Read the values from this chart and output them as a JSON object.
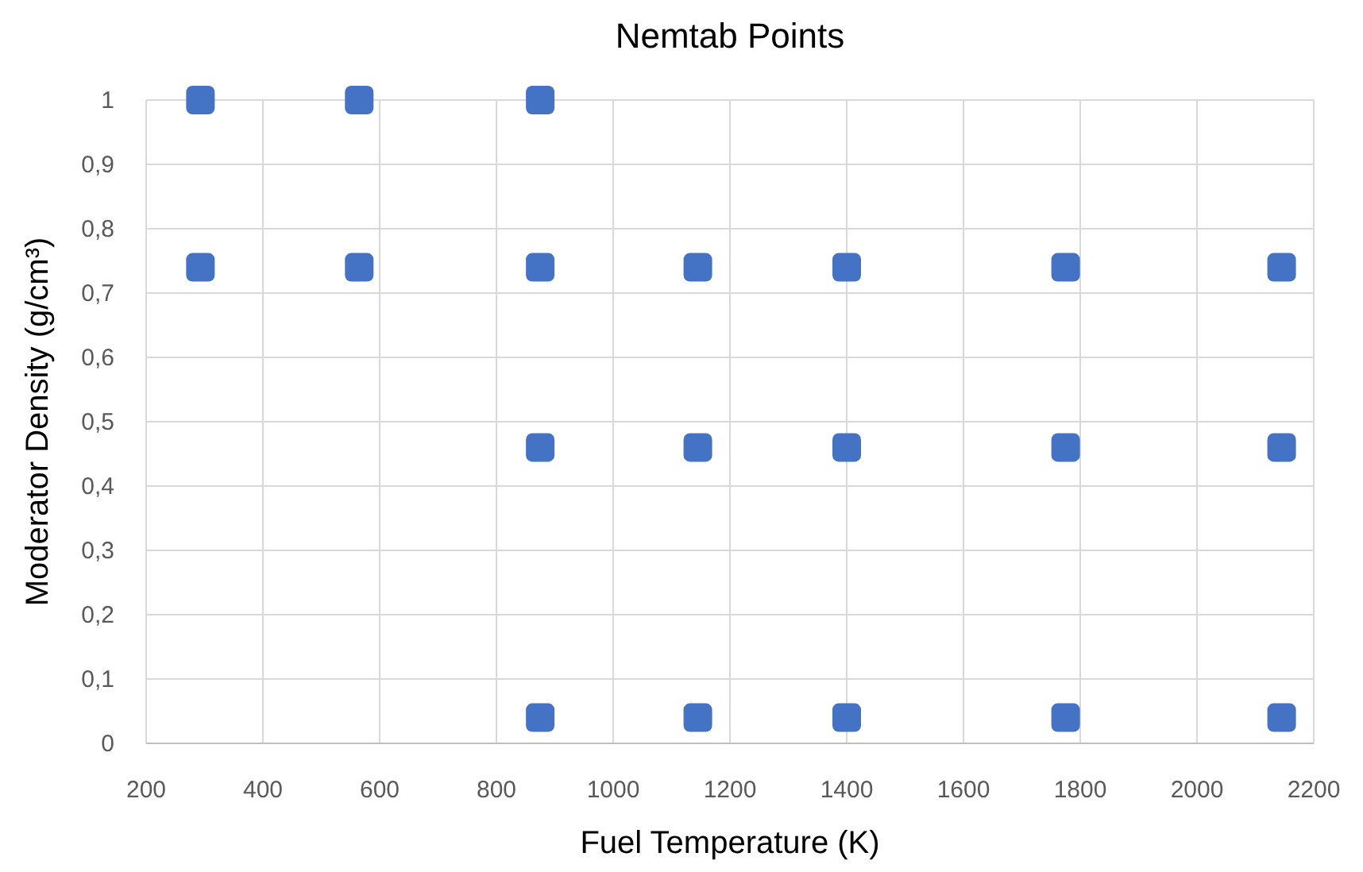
{
  "chart_data": {
    "type": "scatter",
    "title": "Nemtab Points",
    "xlabel": "Fuel Temperature (K)",
    "ylabel": "Moderator Density (g/cm³)",
    "xlim": [
      200,
      2200
    ],
    "xticks": [
      200,
      400,
      600,
      800,
      1000,
      1200,
      1400,
      1600,
      1800,
      2000,
      2200
    ],
    "ylim": [
      0,
      1
    ],
    "yticks": [
      0,
      {
        "value": 0.1,
        "label": "0,1"
      },
      {
        "value": 0.2,
        "label": "0,2"
      },
      {
        "value": 0.3,
        "label": "0,3"
      },
      {
        "value": 0.4,
        "label": "0,4"
      },
      {
        "value": 0.5,
        "label": "0,5"
      },
      {
        "value": 0.6,
        "label": "0,6"
      },
      {
        "value": 0.7,
        "label": "0,7"
      },
      {
        "value": 0.8,
        "label": "0,8"
      },
      {
        "value": 0.9,
        "label": "0,9"
      },
      1
    ],
    "grid": true,
    "marker": "square",
    "series": [
      {
        "color": "#4472c4",
        "x": [
          293,
          565,
          875,
          293,
          565,
          875,
          1145,
          1400,
          1775,
          2145,
          875,
          1145,
          1400,
          1775,
          2145,
          875,
          1145,
          1400,
          1775,
          2145
        ],
        "values": [
          1,
          1,
          1,
          0.74,
          0.74,
          0.74,
          0.74,
          0.74,
          0.74,
          0.74,
          0.46,
          0.46,
          0.46,
          0.46,
          0.46,
          0.04,
          0.04,
          0.04,
          0.04,
          0.04
        ]
      }
    ]
  }
}
